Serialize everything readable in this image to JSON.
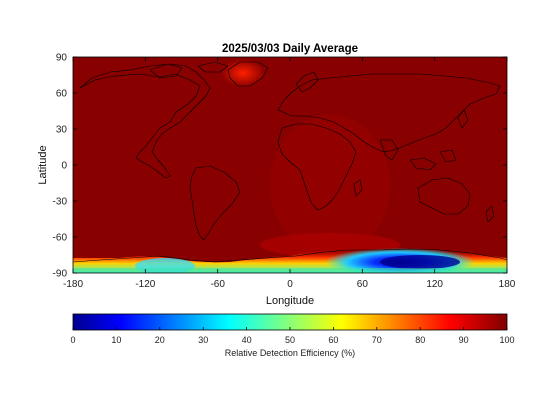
{
  "chart_data": {
    "type": "heatmap",
    "title": "2025/03/03 Daily Average",
    "xlabel": "Longitude",
    "ylabel": "Latitude",
    "xlim": [
      -180,
      180
    ],
    "ylim": [
      -90,
      90
    ],
    "x_ticks": [
      -180,
      -120,
      -60,
      0,
      60,
      120,
      180
    ],
    "y_ticks": [
      90,
      60,
      30,
      0,
      -30,
      -60,
      -90
    ],
    "colorbar": {
      "label": "Relative Detection Efficiency (%)",
      "range": [
        0,
        100
      ],
      "ticks": [
        0,
        10,
        20,
        30,
        40,
        50,
        60,
        70,
        80,
        90,
        100
      ],
      "colormap": "jet",
      "placement": "bottom"
    },
    "background_value": 100,
    "overlay": "coastlines",
    "features": [
      {
        "region": "Antarctica interior near 60E-140E",
        "lon": 95,
        "lat": -84,
        "value": 5
      },
      {
        "region": "East Antarctic coast",
        "lon": 100,
        "lat": -78,
        "value": 35
      },
      {
        "region": "West Antarctica",
        "lon": -120,
        "lat": -84,
        "value": 45
      },
      {
        "region": "Southern Ocean margin",
        "lon": 30,
        "lat": -80,
        "value": 70
      },
      {
        "region": "Greenland",
        "lon": -40,
        "lat": 72,
        "value": 88
      }
    ]
  }
}
